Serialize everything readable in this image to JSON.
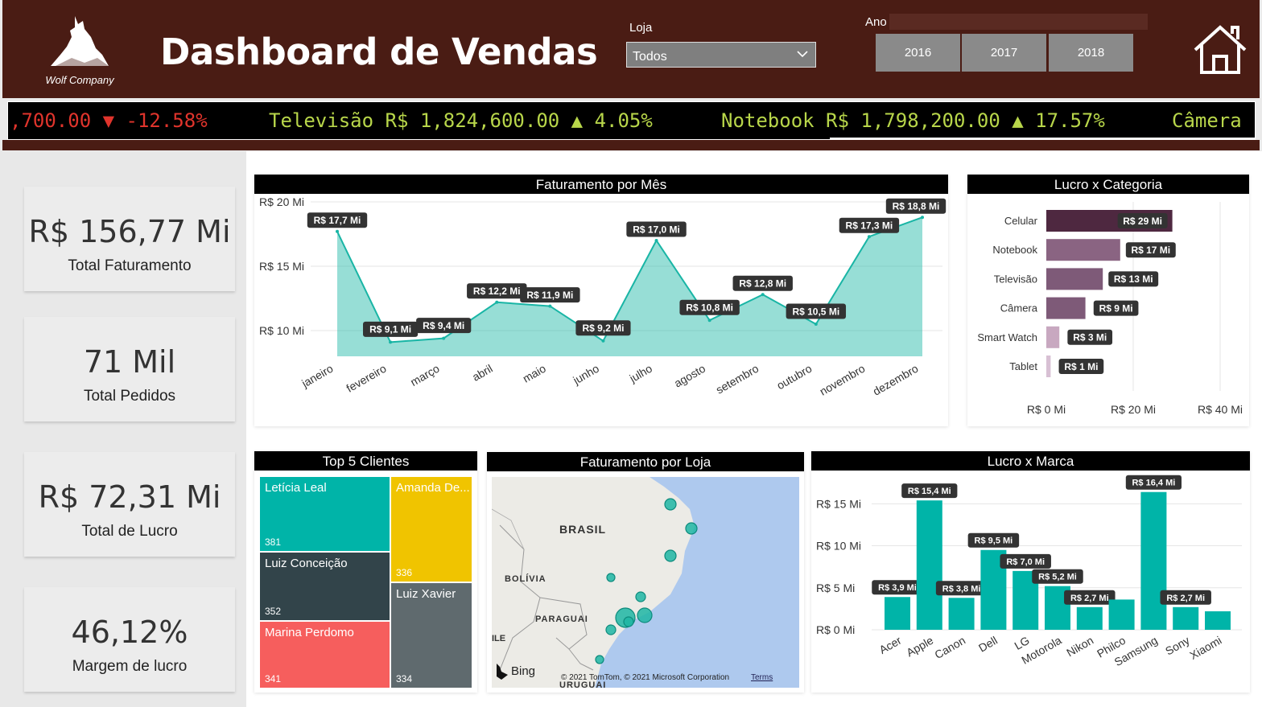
{
  "header": {
    "logo_text": "Wolf Company",
    "title": "Dashboard de Vendas",
    "loja_label": "Loja",
    "loja_value": "Todos",
    "ano_label": "Ano",
    "years": [
      "2016",
      "2017",
      "2018"
    ]
  },
  "ticker": {
    "items": [
      {
        "text": ",700.00 ▼ -12.58%",
        "color": "red"
      },
      {
        "text": "Televisão R$ 1,824,600.00 ▲ 4.05%",
        "color": "green"
      },
      {
        "text": "Notebook R$ 1,798,200.00 ▲ 17.57%",
        "color": "green"
      },
      {
        "text": "Câmera",
        "color": "green"
      }
    ]
  },
  "kpis": [
    {
      "value": "R$ 156,77 Mi",
      "label": "Total Faturamento"
    },
    {
      "value": "71 Mil",
      "label": "Total Pedidos"
    },
    {
      "value": "R$ 72,31 Mi",
      "label": "Total de Lucro"
    },
    {
      "value": "46,12%",
      "label": "Margem de lucro"
    }
  ],
  "charts": {
    "mes_title": "Faturamento por Mês",
    "categoria_title": "Lucro x Categoria",
    "clientes_title": "Top 5 Clientes",
    "loja_title": "Faturamento por Loja",
    "marca_title": "Lucro x Marca"
  },
  "chart_data": [
    {
      "type": "area",
      "title": "Faturamento por Mês",
      "categories": [
        "janeiro",
        "fevereiro",
        "março",
        "abril",
        "maio",
        "junho",
        "julho",
        "agosto",
        "setembro",
        "outubro",
        "novembro",
        "dezembro"
      ],
      "values": [
        17.7,
        9.1,
        9.4,
        12.2,
        11.9,
        9.2,
        17.0,
        10.8,
        12.8,
        10.5,
        17.3,
        18.8
      ],
      "labels": [
        "R$ 17,7 Mi",
        "R$ 9,1 Mi",
        "R$ 9,4 Mi",
        "R$ 12,2 Mi",
        "R$ 11,9 Mi",
        "R$ 9,2 Mi",
        "R$ 17,0 Mi",
        "R$ 10,8 Mi",
        "R$ 12,8 Mi",
        "R$ 10,5 Mi",
        "R$ 17,3 Mi",
        "R$ 18,8 Mi"
      ],
      "yticks": [
        "R$ 10 Mi",
        "R$ 15 Mi",
        "R$ 20 Mi"
      ],
      "ytick_values": [
        10,
        15,
        20
      ],
      "ylim": [
        8,
        20
      ],
      "color": "#19b5a5"
    },
    {
      "type": "bar",
      "title": "Lucro x Categoria",
      "orientation": "horizontal",
      "categories": [
        "Celular",
        "Notebook",
        "Televisão",
        "Câmera",
        "Smart Watch",
        "Tablet"
      ],
      "values": [
        29,
        17,
        13,
        9,
        3,
        1
      ],
      "labels": [
        "R$ 29 Mi",
        "R$ 17 Mi",
        "R$ 13 Mi",
        "R$ 9 Mi",
        "R$ 3 Mi",
        "R$ 1 Mi"
      ],
      "colors": [
        "#4e2840",
        "#8a6482",
        "#7e5a78",
        "#7e5a78",
        "#c8a8c0",
        "#d8c0d4"
      ],
      "xticks": [
        "R$ 0 Mi",
        "R$ 20 Mi",
        "R$ 40 Mi"
      ],
      "xtick_values": [
        0,
        20,
        40
      ],
      "xlim": [
        0,
        40
      ]
    },
    {
      "type": "treemap",
      "title": "Top 5 Clientes",
      "items": [
        {
          "name": "Letícia Leal",
          "value": 381,
          "color": "#00b4a8"
        },
        {
          "name": "Amanda De...",
          "value": 336,
          "color": "#f0c400"
        },
        {
          "name": "Luiz Conceição",
          "value": 352,
          "color": "#32444a"
        },
        {
          "name": "Luiz Xavier",
          "value": 334,
          "color": "#5f6a6e"
        },
        {
          "name": "Marina Perdomo",
          "value": 341,
          "color": "#f65e5d"
        }
      ]
    },
    {
      "type": "map",
      "title": "Faturamento por Loja",
      "labels": [
        "BRASIL",
        "BOLÍVIA",
        "PARAGUAI",
        "ILE",
        "URUGUAI"
      ],
      "attribution": "© 2021 TomTom, © 2021 Microsoft Corporation",
      "terms": "Terms",
      "provider": "Bing"
    },
    {
      "type": "bar",
      "title": "Lucro x Marca",
      "categories": [
        "Acer",
        "Apple",
        "Canon",
        "Dell",
        "LG",
        "Motorola",
        "Nikon",
        "Philco",
        "Samsung",
        "Sony",
        "Xiaomi"
      ],
      "values": [
        3.9,
        15.4,
        3.8,
        9.5,
        7.0,
        5.2,
        2.7,
        3.6,
        16.4,
        2.7,
        2.2
      ],
      "labels": [
        "R$ 3,9 Mi",
        "R$ 15,4 Mi",
        "R$ 3,8 Mi",
        "R$ 9,5 Mi",
        "R$ 7,0 Mi",
        "R$ 5,2 Mi",
        "R$ 2,7 Mi",
        "",
        "R$ 16,4 Mi",
        "R$ 2,7 Mi",
        ""
      ],
      "yticks": [
        "R$ 0 Mi",
        "R$ 5 Mi",
        "R$ 10 Mi",
        "R$ 15 Mi"
      ],
      "ytick_values": [
        0,
        5,
        10,
        15
      ],
      "ylim": [
        0,
        18
      ],
      "color": "#00b4a8"
    }
  ]
}
